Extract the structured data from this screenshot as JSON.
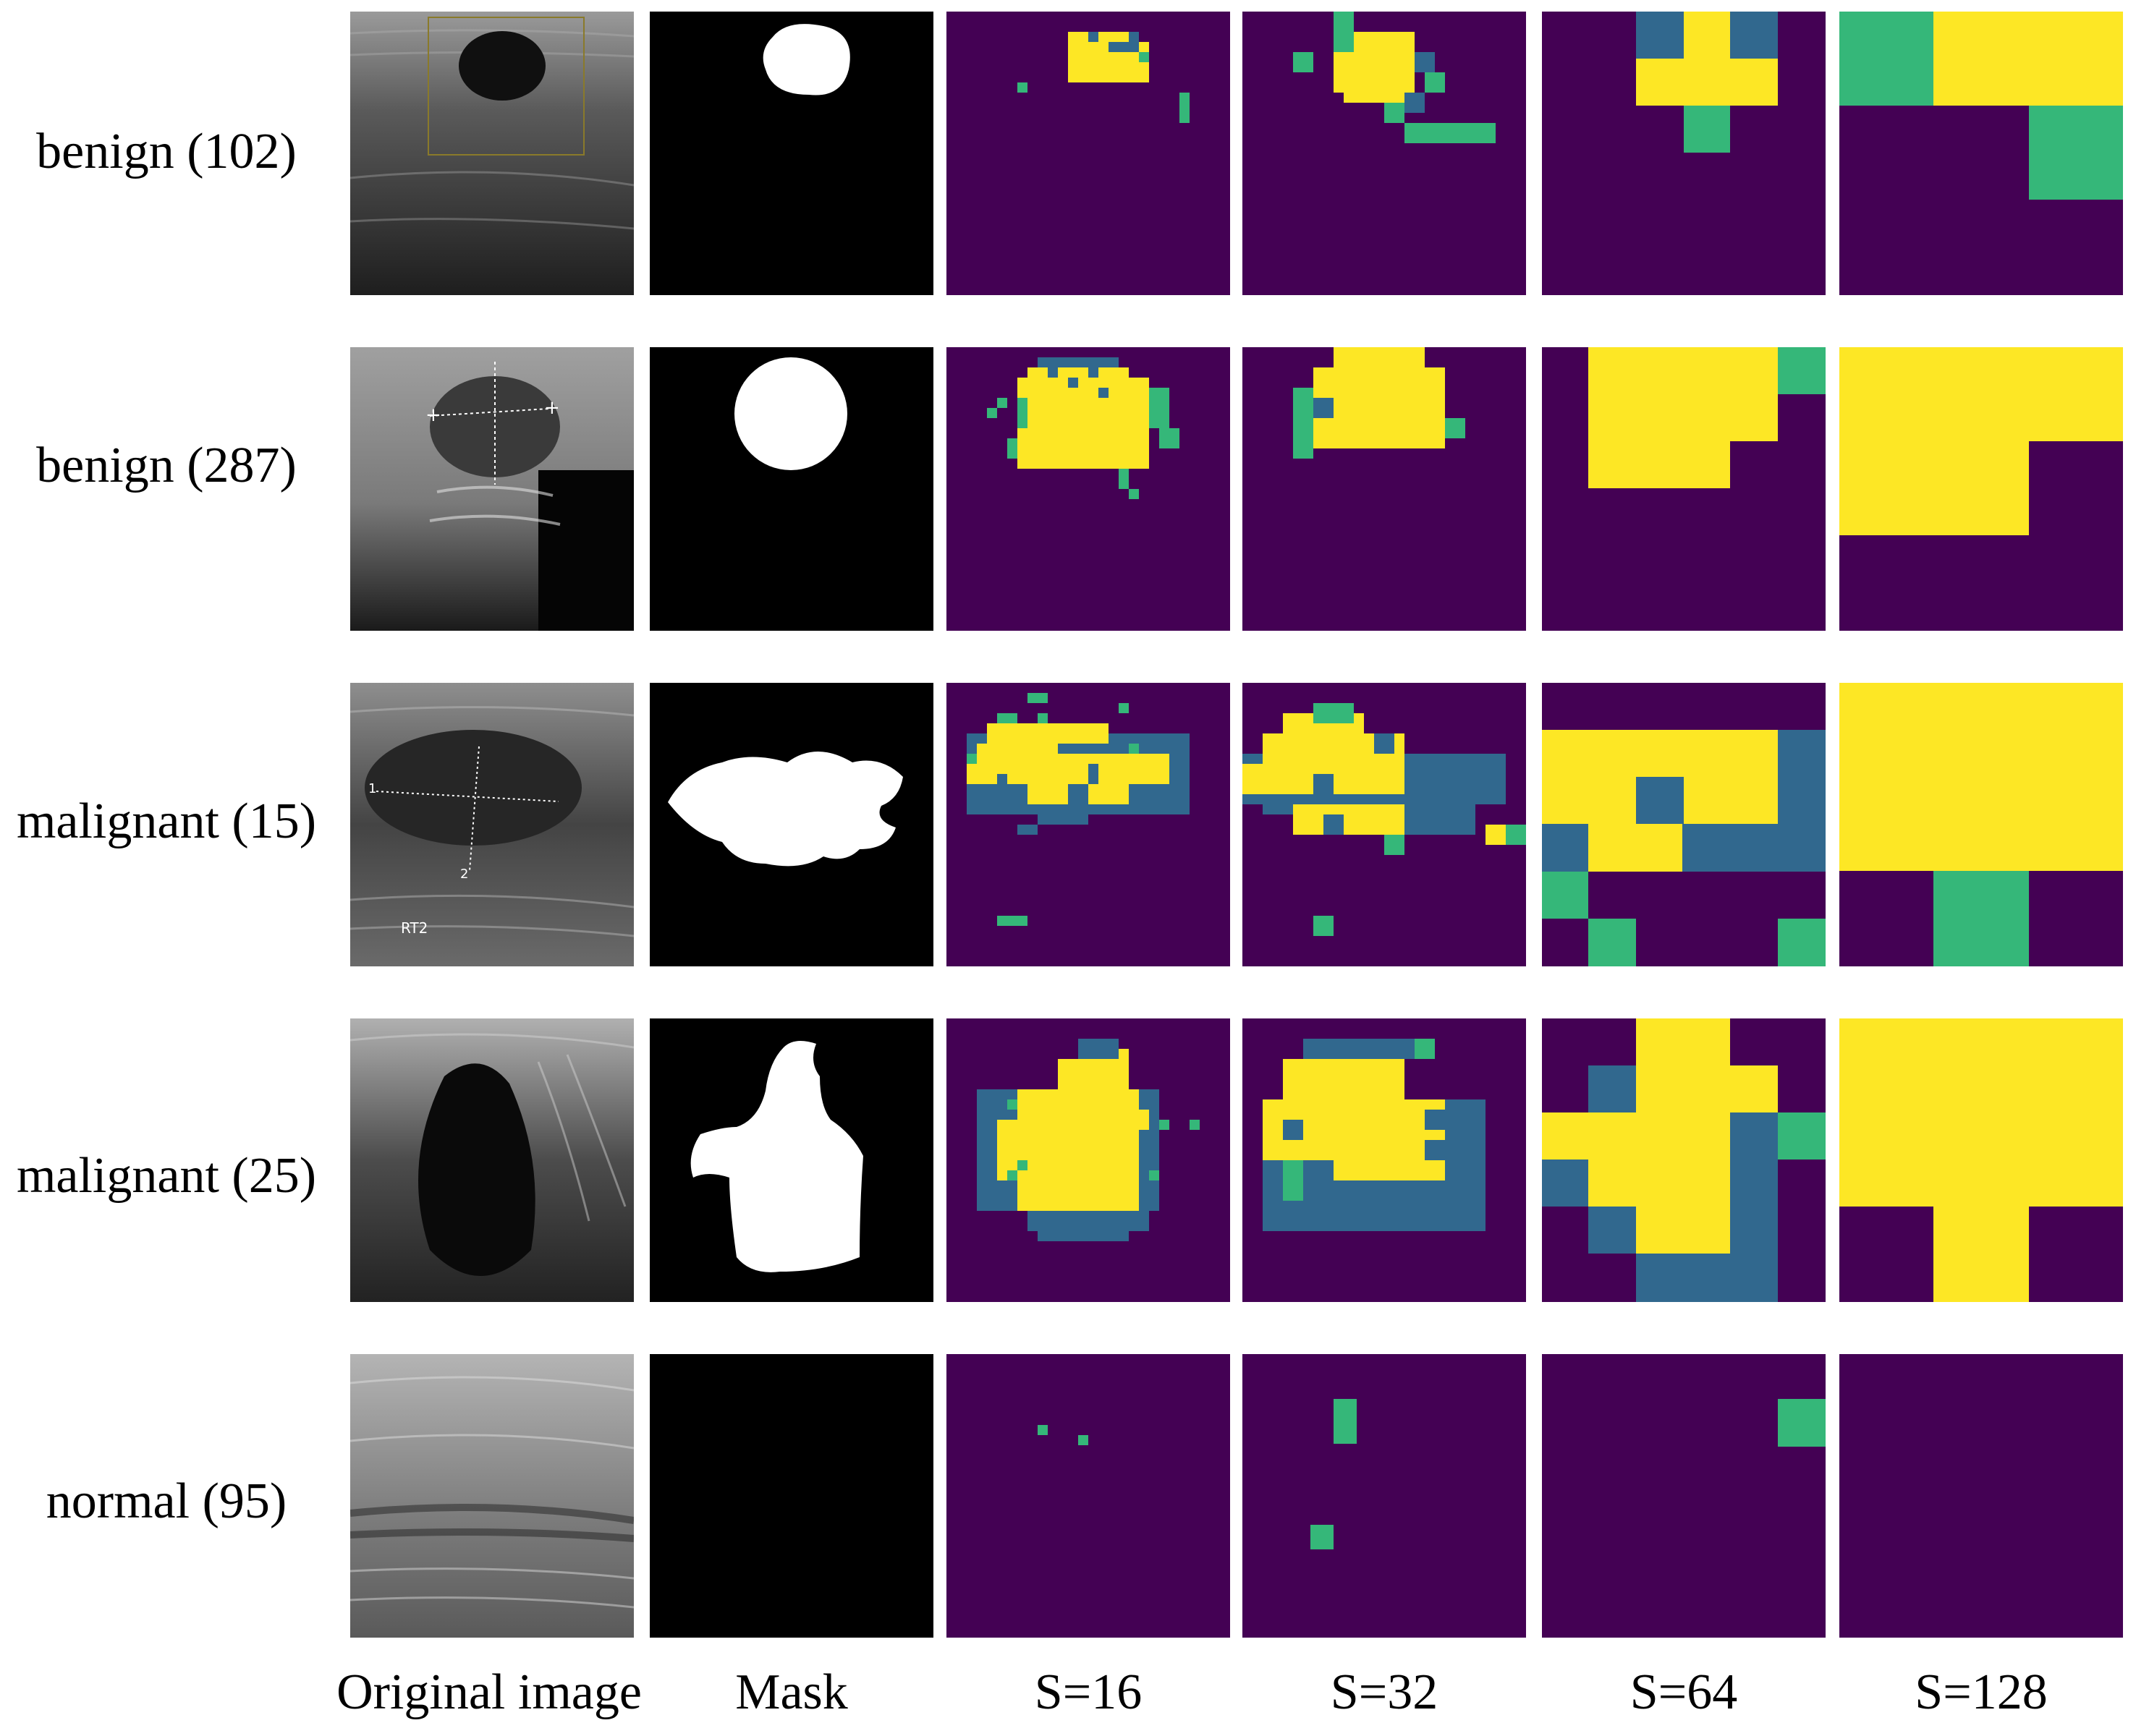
{
  "colors": {
    "background_class": "#440154",
    "class_a": "#31688e",
    "class_b": "#35b779",
    "class_c": "#fde725",
    "mask_foreground": "#ffffff",
    "mask_background": "#000000"
  },
  "column_labels": [
    "Original image",
    "Mask",
    "S=16",
    "S=32",
    "S=64",
    "S=128"
  ],
  "rows": [
    {
      "label": "benign (102)",
      "mask_shape": "small round blob near top center",
      "ultrasound": "grayscale breast ultrasound with dark oval lesion at top center and yellow bounding box",
      "maps": {
        "S16": [
          "...........CCCAAAA..........",
          "...........CAAAACAB.........",
          "...........CCCCCCCB.........",
          "...........CCCCCCC..........",
          ".......B...CCCCCCC....B.....",
          "......................B.....",
          "......................B....."
        ],
        "S32": [
          "............B......",
          "............BCCCCCB",
          ".B...........CCCCCCB",
          "..............CCCCCB..",
          "............CCCCCBB...",
          "..........B...BBBBB....",
          "..............BBBBBB"
        ],
        "S64": [
          "......AACCAA",
          "......AACCAA",
          "......CCCCCC",
          "......CCCCCC",
          "........BB..",
          "........BB.."
        ],
        "S128": [
          "BBCCCC",
          "BBCCCC",
          "....BB",
          "....BB"
        ]
      }
    },
    {
      "label": "benign (287)"
    },
    {
      "label": "malignant (15)",
      "overlay_text": "RT2"
    },
    {
      "label": "malignant (25)"
    },
    {
      "label": "normal (95)"
    }
  ]
}
